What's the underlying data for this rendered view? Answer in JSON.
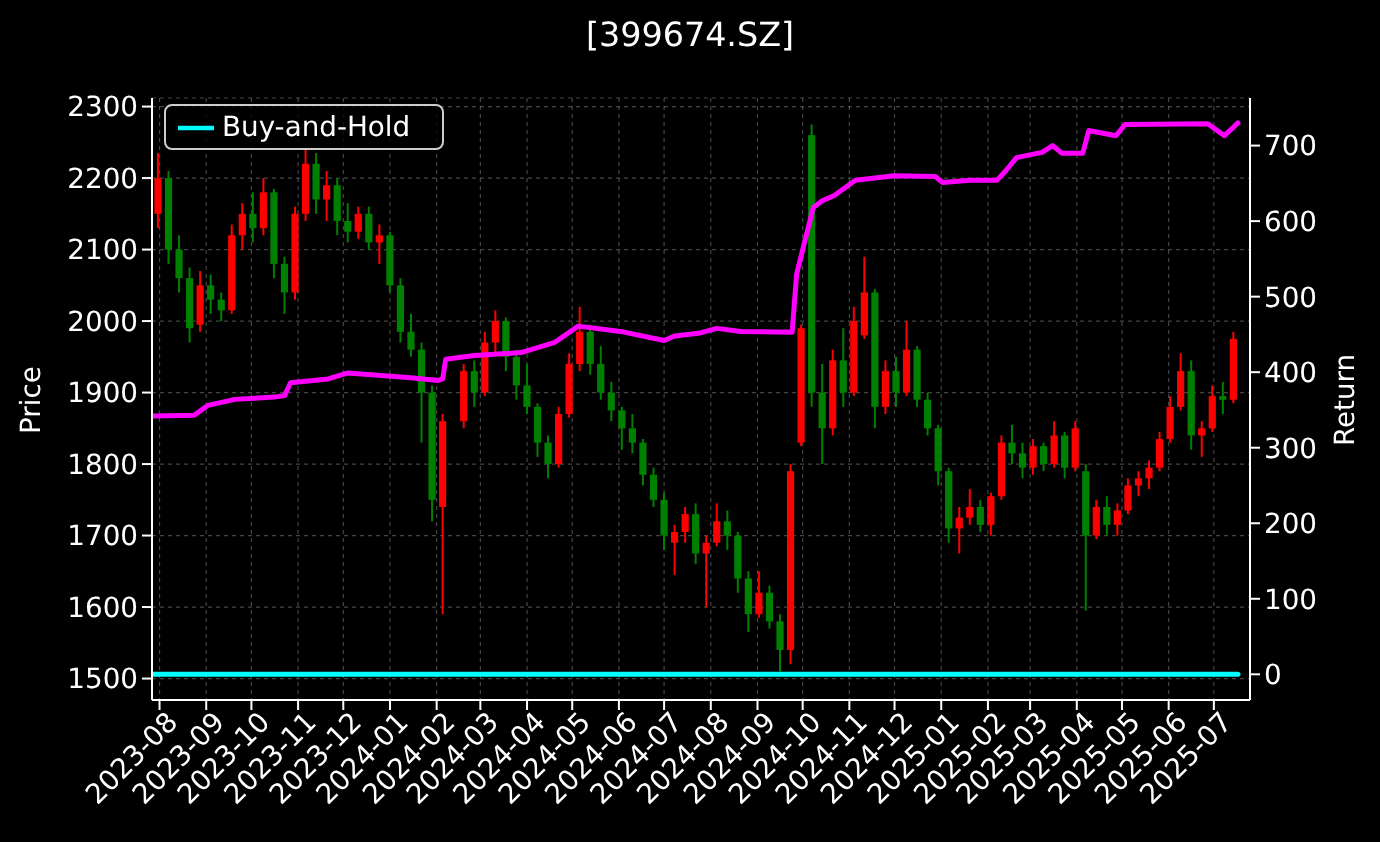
{
  "chart_data": {
    "type": "candlestick",
    "title": "[399674.SZ]",
    "ylabel": "Price",
    "y2label": "Return",
    "x": [
      "2023-07-31",
      "2023-08-07",
      "2023-08-14",
      "2023-08-21",
      "2023-08-28",
      "2023-09-04",
      "2023-09-11",
      "2023-09-18",
      "2023-09-25",
      "2023-10-02",
      "2023-10-09",
      "2023-10-16",
      "2023-10-23",
      "2023-10-30",
      "2023-11-06",
      "2023-11-13",
      "2023-11-20",
      "2023-11-27",
      "2023-12-04",
      "2023-12-11",
      "2023-12-18",
      "2023-12-25",
      "2024-01-01",
      "2024-01-08",
      "2024-01-15",
      "2024-01-22",
      "2024-01-29",
      "2024-02-05",
      "2024-02-19",
      "2024-02-26",
      "2024-03-04",
      "2024-03-11",
      "2024-03-18",
      "2024-03-25",
      "2024-04-01",
      "2024-04-08",
      "2024-04-15",
      "2024-04-22",
      "2024-04-29",
      "2024-05-06",
      "2024-05-13",
      "2024-05-20",
      "2024-05-27",
      "2024-06-03",
      "2024-06-10",
      "2024-06-17",
      "2024-06-24",
      "2024-07-01",
      "2024-07-08",
      "2024-07-15",
      "2024-07-22",
      "2024-07-29",
      "2024-08-05",
      "2024-08-12",
      "2024-08-19",
      "2024-08-26",
      "2024-09-02",
      "2024-09-09",
      "2024-09-16",
      "2024-09-23",
      "2024-09-30",
      "2024-10-07",
      "2024-10-14",
      "2024-10-21",
      "2024-10-28",
      "2024-11-04",
      "2024-11-11",
      "2024-11-18",
      "2024-11-25",
      "2024-12-02",
      "2024-12-09",
      "2024-12-16",
      "2024-12-23",
      "2024-12-30",
      "2025-01-06",
      "2025-01-13",
      "2025-01-20",
      "2025-01-27",
      "2025-02-03",
      "2025-02-10",
      "2025-02-17",
      "2025-02-24",
      "2025-03-03",
      "2025-03-10",
      "2025-03-17",
      "2025-03-24",
      "2025-03-31",
      "2025-04-07",
      "2025-04-14",
      "2025-04-21",
      "2025-04-28",
      "2025-05-05",
      "2025-05-12",
      "2025-05-19",
      "2025-05-26",
      "2025-06-02",
      "2025-06-09",
      "2025-06-16",
      "2025-06-23",
      "2025-06-30",
      "2025-07-07",
      "2025-07-14"
    ],
    "ohlc": [
      [
        2150,
        2235,
        2130,
        2200
      ],
      [
        2200,
        2210,
        2080,
        2100
      ],
      [
        2100,
        2120,
        2040,
        2060
      ],
      [
        2060,
        2075,
        1970,
        1990
      ],
      [
        1995,
        2070,
        1985,
        2050
      ],
      [
        2050,
        2065,
        2010,
        2030
      ],
      [
        2030,
        2040,
        2000,
        2015
      ],
      [
        2015,
        2135,
        2010,
        2120
      ],
      [
        2120,
        2165,
        2100,
        2150
      ],
      [
        2150,
        2180,
        2110,
        2130
      ],
      [
        2130,
        2200,
        2120,
        2180
      ],
      [
        2180,
        2185,
        2060,
        2080
      ],
      [
        2080,
        2090,
        2010,
        2040
      ],
      [
        2040,
        2160,
        2030,
        2150
      ],
      [
        2150,
        2240,
        2140,
        2220
      ],
      [
        2220,
        2235,
        2150,
        2170
      ],
      [
        2170,
        2210,
        2140,
        2190
      ],
      [
        2190,
        2200,
        2120,
        2140
      ],
      [
        2140,
        2165,
        2110,
        2125
      ],
      [
        2125,
        2160,
        2115,
        2150
      ],
      [
        2150,
        2160,
        2100,
        2110
      ],
      [
        2110,
        2135,
        2080,
        2120
      ],
      [
        2120,
        2125,
        2040,
        2050
      ],
      [
        2050,
        2060,
        1970,
        1985
      ],
      [
        1985,
        2010,
        1950,
        1960
      ],
      [
        1960,
        1970,
        1830,
        1900
      ],
      [
        1900,
        1910,
        1720,
        1750
      ],
      [
        1740,
        1870,
        1590,
        1860
      ],
      [
        1860,
        1940,
        1850,
        1930
      ],
      [
        1930,
        1945,
        1880,
        1900
      ],
      [
        1900,
        1985,
        1895,
        1970
      ],
      [
        1970,
        2015,
        1955,
        2000
      ],
      [
        2000,
        2005,
        1930,
        1950
      ],
      [
        1950,
        1960,
        1890,
        1910
      ],
      [
        1910,
        1940,
        1870,
        1880
      ],
      [
        1880,
        1885,
        1810,
        1830
      ],
      [
        1830,
        1840,
        1780,
        1800
      ],
      [
        1800,
        1880,
        1795,
        1870
      ],
      [
        1870,
        1955,
        1865,
        1940
      ],
      [
        1940,
        2020,
        1930,
        1985
      ],
      [
        1985,
        1995,
        1925,
        1940
      ],
      [
        1940,
        1965,
        1890,
        1900
      ],
      [
        1900,
        1915,
        1860,
        1875
      ],
      [
        1875,
        1880,
        1820,
        1850
      ],
      [
        1850,
        1870,
        1815,
        1830
      ],
      [
        1830,
        1835,
        1770,
        1785
      ],
      [
        1785,
        1795,
        1740,
        1750
      ],
      [
        1750,
        1760,
        1680,
        1700
      ],
      [
        1690,
        1715,
        1645,
        1705
      ],
      [
        1705,
        1740,
        1690,
        1730
      ],
      [
        1730,
        1745,
        1660,
        1675
      ],
      [
        1675,
        1700,
        1600,
        1690
      ],
      [
        1690,
        1745,
        1685,
        1720
      ],
      [
        1720,
        1735,
        1680,
        1700
      ],
      [
        1700,
        1705,
        1620,
        1640
      ],
      [
        1640,
        1650,
        1565,
        1590
      ],
      [
        1590,
        1650,
        1585,
        1620
      ],
      [
        1620,
        1630,
        1570,
        1580
      ],
      [
        1580,
        1590,
        1510,
        1540
      ],
      [
        1540,
        1800,
        1520,
        1790
      ],
      [
        1830,
        1995,
        1825,
        1990
      ],
      [
        2260,
        2275,
        1880,
        1900
      ],
      [
        1900,
        1940,
        1800,
        1850
      ],
      [
        1850,
        1960,
        1840,
        1945
      ],
      [
        1945,
        1990,
        1880,
        1900
      ],
      [
        1900,
        2020,
        1895,
        2000
      ],
      [
        1980,
        2090,
        1975,
        2040
      ],
      [
        2040,
        2045,
        1850,
        1880
      ],
      [
        1880,
        1945,
        1870,
        1930
      ],
      [
        1930,
        1950,
        1880,
        1900
      ],
      [
        1900,
        2000,
        1895,
        1960
      ],
      [
        1960,
        1965,
        1880,
        1890
      ],
      [
        1890,
        1900,
        1840,
        1850
      ],
      [
        1850,
        1855,
        1770,
        1790
      ],
      [
        1790,
        1795,
        1690,
        1710
      ],
      [
        1710,
        1740,
        1675,
        1725
      ],
      [
        1725,
        1765,
        1715,
        1740
      ],
      [
        1740,
        1750,
        1705,
        1715
      ],
      [
        1715,
        1760,
        1700,
        1755
      ],
      [
        1755,
        1840,
        1750,
        1830
      ],
      [
        1830,
        1855,
        1800,
        1815
      ],
      [
        1815,
        1830,
        1780,
        1795
      ],
      [
        1795,
        1835,
        1785,
        1825
      ],
      [
        1825,
        1830,
        1790,
        1800
      ],
      [
        1800,
        1860,
        1795,
        1840
      ],
      [
        1840,
        1845,
        1780,
        1795
      ],
      [
        1795,
        1860,
        1790,
        1850
      ],
      [
        1790,
        1800,
        1595,
        1700
      ],
      [
        1700,
        1750,
        1695,
        1740
      ],
      [
        1740,
        1755,
        1700,
        1715
      ],
      [
        1715,
        1745,
        1700,
        1735
      ],
      [
        1735,
        1780,
        1730,
        1770
      ],
      [
        1770,
        1790,
        1755,
        1780
      ],
      [
        1780,
        1805,
        1765,
        1795
      ],
      [
        1795,
        1845,
        1790,
        1835
      ],
      [
        1835,
        1895,
        1830,
        1880
      ],
      [
        1880,
        1955,
        1875,
        1930
      ],
      [
        1930,
        1945,
        1820,
        1840
      ],
      [
        1840,
        1860,
        1810,
        1850
      ],
      [
        1850,
        1910,
        1845,
        1895
      ],
      [
        1895,
        1915,
        1870,
        1890
      ],
      [
        1890,
        1985,
        1885,
        1975
      ]
    ],
    "colors": [
      "#ff0000",
      "#008000",
      "#008000",
      "#008000",
      "#ff0000",
      "#008000",
      "#008000",
      "#ff0000",
      "#ff0000",
      "#008000",
      "#ff0000",
      "#008000",
      "#008000",
      "#ff0000",
      "#ff0000",
      "#008000",
      "#ff0000",
      "#008000",
      "#008000",
      "#ff0000",
      "#008000",
      "#ff0000",
      "#008000",
      "#008000",
      "#008000",
      "#008000",
      "#008000",
      "#ff0000",
      "#ff0000",
      "#008000",
      "#ff0000",
      "#ff0000",
      "#008000",
      "#008000",
      "#008000",
      "#008000",
      "#008000",
      "#ff0000",
      "#ff0000",
      "#ff0000",
      "#008000",
      "#008000",
      "#008000",
      "#008000",
      "#008000",
      "#008000",
      "#008000",
      "#008000",
      "#ff0000",
      "#ff0000",
      "#008000",
      "#ff0000",
      "#ff0000",
      "#008000",
      "#008000",
      "#008000",
      "#ff0000",
      "#008000",
      "#008000",
      "#ff0000",
      "#ff0000",
      "#008000",
      "#008000",
      "#ff0000",
      "#008000",
      "#ff0000",
      "#ff0000",
      "#008000",
      "#ff0000",
      "#008000",
      "#ff0000",
      "#008000",
      "#008000",
      "#008000",
      "#008000",
      "#ff0000",
      "#ff0000",
      "#008000",
      "#ff0000",
      "#ff0000",
      "#008000",
      "#008000",
      "#ff0000",
      "#008000",
      "#ff0000",
      "#008000",
      "#ff0000",
      "#008000",
      "#ff0000",
      "#008000",
      "#ff0000",
      "#ff0000",
      "#ff0000",
      "#ff0000",
      "#ff0000",
      "#ff0000",
      "#ff0000",
      "#008000",
      "#ff0000",
      "#ff0000",
      "#008000",
      "#ff0000"
    ],
    "series": [
      {
        "type": "line",
        "color": "#ff00ff",
        "axis": "y2",
        "x": [
          "2023-07-28",
          "2023-08-24",
          "2023-09-02",
          "2023-09-20",
          "2023-10-16",
          "2023-10-23",
          "2023-10-27",
          "2023-11-21",
          "2023-12-04",
          "2024-01-13",
          "2024-02-02",
          "2024-02-05",
          "2024-02-07",
          "2024-02-26",
          "2024-03-28",
          "2024-04-19",
          "2024-05-05",
          "2024-06-02",
          "2024-07-01",
          "2024-07-08",
          "2024-07-25",
          "2024-08-05",
          "2024-08-21",
          "2024-09-24",
          "2024-09-27",
          "2024-10-08",
          "2024-10-14",
          "2024-10-22",
          "2024-11-05",
          "2024-12-01",
          "2024-12-28",
          "2025-01-02",
          "2025-01-20",
          "2025-02-07",
          "2025-02-13",
          "2025-02-20",
          "2025-03-09",
          "2025-03-16",
          "2025-03-22",
          "2025-04-05",
          "2025-04-09",
          "2025-04-27",
          "2025-05-03",
          "2025-06-27",
          "2025-07-08",
          "2025-07-17"
        ],
        "values": [
          342,
          343,
          356,
          364,
          367,
          369,
          386,
          391,
          399,
          393,
          389,
          391,
          417,
          422,
          426,
          439,
          461,
          454,
          442,
          448,
          452,
          458,
          454,
          453,
          530,
          618,
          627,
          634,
          654,
          660,
          659,
          651,
          654,
          654,
          667,
          684,
          691,
          700,
          690,
          690,
          720,
          713,
          728,
          729,
          713,
          730
        ]
      },
      {
        "type": "line",
        "name": "Buy-and-Hold",
        "color": "#00ffff",
        "axis": "y2",
        "x": [
          "2023-07-28",
          "2025-07-17"
        ],
        "values": [
          0,
          0
        ]
      }
    ],
    "xlim": [
      "2023-07-27",
      "2025-07-25"
    ],
    "xticks": [
      "2023-08",
      "2023-09",
      "2023-10",
      "2023-11",
      "2023-12",
      "2024-01",
      "2024-02",
      "2024-03",
      "2024-04",
      "2024-05",
      "2024-06",
      "2024-07",
      "2024-08",
      "2024-09",
      "2024-10",
      "2024-11",
      "2024-12",
      "2025-01",
      "2025-02",
      "2025-03",
      "2025-04",
      "2025-05",
      "2025-06",
      "2025-07"
    ],
    "ylim": [
      1470,
      2312
    ],
    "yticks": [
      1500,
      1600,
      1700,
      1800,
      1900,
      2000,
      2100,
      2200,
      2300
    ],
    "y2lim": [
      -34,
      763
    ],
    "y2ticks": [
      0,
      100,
      200,
      300,
      400,
      500,
      600,
      700
    ],
    "grid": true,
    "legend": "top left",
    "marker": "none"
  }
}
